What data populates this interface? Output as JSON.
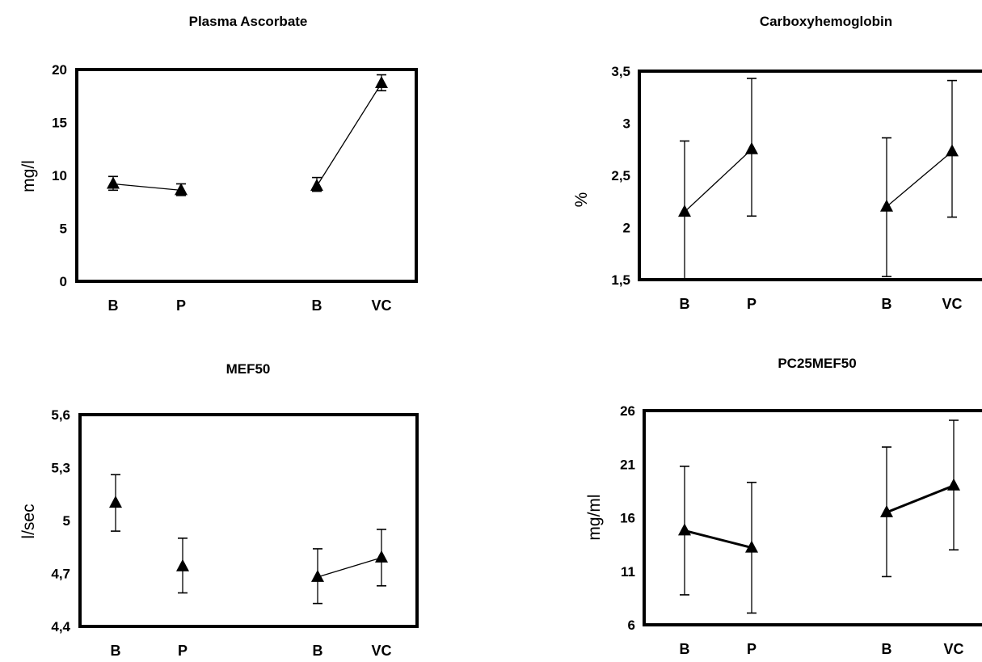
{
  "chart_data": [
    {
      "type": "line",
      "title": "Plasma Ascorbate",
      "ylabel": "mg/l",
      "ylim": [
        0,
        20
      ],
      "yticks": [
        "0",
        "5",
        "10",
        "15",
        "20"
      ],
      "categories": [
        "B",
        "P",
        "B",
        "VC"
      ],
      "groups": [
        {
          "points": [
            {
              "x": "B",
              "y": 9.2,
              "err_low": 8.6,
              "err_high": 9.9
            },
            {
              "x": "P",
              "y": 8.6,
              "err_low": 8.1,
              "err_high": 9.2
            }
          ]
        },
        {
          "points": [
            {
              "x": "B",
              "y": 9.0,
              "err_low": 8.5,
              "err_high": 9.8
            },
            {
              "x": "VC",
              "y": 18.7,
              "err_low": 18.0,
              "err_high": 19.5
            }
          ]
        }
      ]
    },
    {
      "type": "line",
      "title": "Carboxyhemoglobin",
      "ylabel": "%",
      "ylim": [
        1.5,
        3.5
      ],
      "yticks": [
        "1,5",
        "2",
        "2,5",
        "3",
        "3,5"
      ],
      "categories": [
        "B",
        "P",
        "B",
        "VC"
      ],
      "groups": [
        {
          "points": [
            {
              "x": "B",
              "y": 2.15,
              "err_low": 1.5,
              "err_high": 2.83
            },
            {
              "x": "P",
              "y": 2.75,
              "err_low": 2.11,
              "err_high": 3.43
            }
          ]
        },
        {
          "points": [
            {
              "x": "B",
              "y": 2.2,
              "err_low": 1.53,
              "err_high": 2.86
            },
            {
              "x": "VC",
              "y": 2.73,
              "err_low": 2.1,
              "err_high": 3.41
            }
          ]
        }
      ]
    },
    {
      "type": "line",
      "title": "MEF50",
      "ylabel": "l/sec",
      "ylim": [
        4.4,
        5.6
      ],
      "yticks": [
        "4,4",
        "4,7",
        "5",
        "5,3",
        "5,6"
      ],
      "categories": [
        "B",
        "P",
        "B",
        "VC"
      ],
      "groups": [
        {
          "points": [
            {
              "x": "B",
              "y": 5.1,
              "err_low": 4.94,
              "err_high": 5.26
            }
          ]
        },
        {
          "points": [
            {
              "x": "P",
              "y": 4.74,
              "err_low": 4.59,
              "err_high": 4.9
            }
          ]
        },
        {
          "points": [
            {
              "x": "B",
              "y": 4.68,
              "err_low": 4.53,
              "err_high": 4.84
            },
            {
              "x": "VC",
              "y": 4.79,
              "err_low": 4.63,
              "err_high": 4.95
            }
          ]
        }
      ]
    },
    {
      "type": "line",
      "title": "PC25MEF50",
      "ylabel": "mg/ml",
      "ylim": [
        6,
        26
      ],
      "yticks": [
        "6",
        "11",
        "16",
        "21",
        "26"
      ],
      "categories": [
        "B",
        "P",
        "B",
        "VC"
      ],
      "groups": [
        {
          "points": [
            {
              "x": "B",
              "y": 14.8,
              "err_low": 8.8,
              "err_high": 20.8
            },
            {
              "x": "P",
              "y": 13.2,
              "err_low": 7.1,
              "err_high": 19.3
            }
          ]
        },
        {
          "points": [
            {
              "x": "B",
              "y": 16.5,
              "err_low": 10.5,
              "err_high": 22.6
            },
            {
              "x": "VC",
              "y": 19.0,
              "err_low": 13.0,
              "err_high": 25.1
            }
          ]
        }
      ]
    }
  ]
}
